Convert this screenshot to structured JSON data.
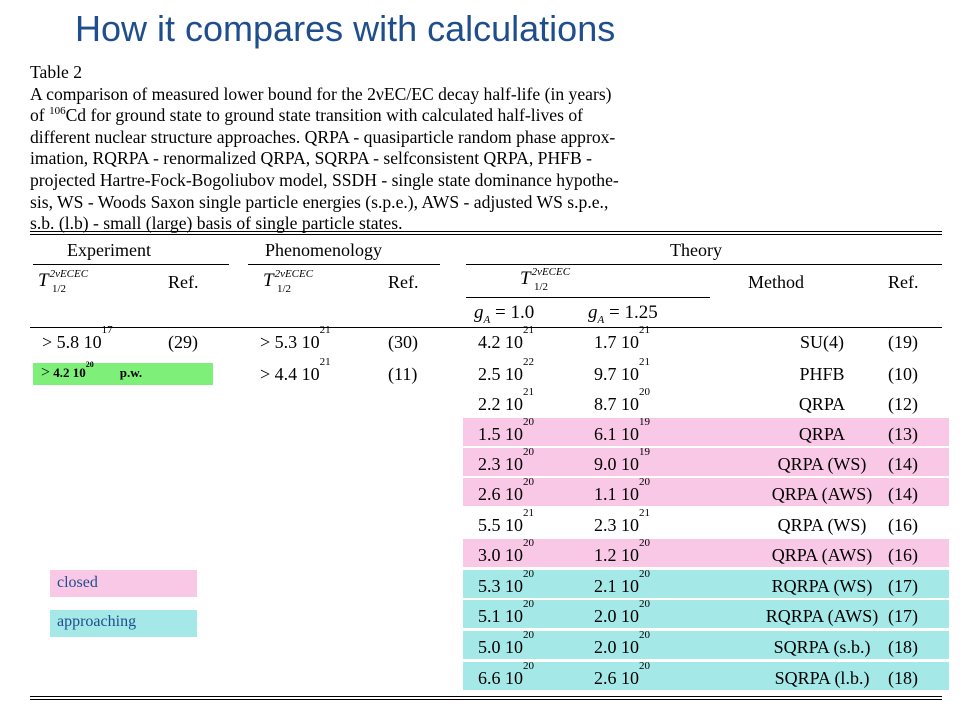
{
  "slide": {
    "title": "How it compares with calculations"
  },
  "caption": {
    "heading": "Table 2",
    "line1": "A comparison of measured lower bound for the 2νEC/EC decay half-life (in years)",
    "line2_pre": "of ",
    "line2_mass": "106",
    "line2_post": "Cd for ground state to ground state transition with calculated half-lives of",
    "line3": "different nuclear structure approaches. QRPA - quasiparticle random phase approx-",
    "line4": "imation, RQRPA - renormalized QRPA, SQRPA - selfconsistent QRPA, PHFB -",
    "line5": "projected Hartre-Fock-Bogoliubov model, SSDH - single state dominance hypothe-",
    "line6": "sis, WS - Woods Saxon single particle energies (s.p.e.), AWS - adjusted WS s.p.e.,",
    "line7": "s.b. (l.b) - small (large) basis of single particle states."
  },
  "table": {
    "groups": {
      "experiment": "Experiment",
      "phenomenology": "Phenomenology",
      "theory": "Theory"
    },
    "headers": {
      "t_main": "T",
      "t_sup": "2νECEC",
      "t_sub": "1/2",
      "ref": "Ref.",
      "method": "Method",
      "ga_label": "g",
      "ga_sub": "A",
      "ga1": " = 1.0",
      "ga2": " = 1.25"
    },
    "experiment_rows": [
      {
        "value": "> 5.8 10",
        "exp": "17",
        "ref": "(29)"
      }
    ],
    "phenomenology_rows": [
      {
        "value": "> 5.3 10",
        "exp": "21",
        "ref": "(30)"
      },
      {
        "value": "> 4.4 10",
        "exp": "21",
        "ref": "(11)"
      }
    ],
    "theory_rows": [
      {
        "v1": "4.2 10",
        "e1": "21",
        "v2": "1.7 10",
        "e2": "21",
        "method": "SU(4)",
        "ref": "(19)",
        "status": "none"
      },
      {
        "v1": "2.5 10",
        "e1": "22",
        "v2": "9.7 10",
        "e2": "21",
        "method": "PHFB",
        "ref": "(10)",
        "status": "none"
      },
      {
        "v1": "2.2 10",
        "e1": "21",
        "v2": "8.7 10",
        "e2": "20",
        "method": "QRPA",
        "ref": "(12)",
        "status": "none"
      },
      {
        "v1": "1.5 10",
        "e1": "20",
        "v2": "6.1 10",
        "e2": "19",
        "method": "QRPA",
        "ref": "(13)",
        "status": "closed"
      },
      {
        "v1": "2.3 10",
        "e1": "20",
        "v2": "9.0 10",
        "e2": "19",
        "method": "QRPA (WS)",
        "ref": "(14)",
        "status": "closed"
      },
      {
        "v1": "2.6 10",
        "e1": "20",
        "v2": "1.1 10",
        "e2": "20",
        "method": "QRPA (AWS)",
        "ref": "(14)",
        "status": "closed"
      },
      {
        "v1": "5.5 10",
        "e1": "21",
        "v2": "2.3 10",
        "e2": "21",
        "method": "QRPA (WS)",
        "ref": "(16)",
        "status": "none"
      },
      {
        "v1": "3.0 10",
        "e1": "20",
        "v2": "1.2 10",
        "e2": "20",
        "method": "QRPA (AWS)",
        "ref": "(16)",
        "status": "closed"
      },
      {
        "v1": "5.3 10",
        "e1": "20",
        "v2": "2.1 10",
        "e2": "20",
        "method": "RQRPA (WS)",
        "ref": "(17)",
        "status": "approaching"
      },
      {
        "v1": "5.1 10",
        "e1": "20",
        "v2": "2.0 10",
        "e2": "20",
        "method": "RQRPA (AWS)",
        "ref": "(17)",
        "status": "approaching"
      },
      {
        "v1": "5.0 10",
        "e1": "20",
        "v2": "2.0 10",
        "e2": "20",
        "method": "SQRPA (s.b.)",
        "ref": "(18)",
        "status": "approaching"
      },
      {
        "v1": "6.6 10",
        "e1": "20",
        "v2": "2.6 10",
        "e2": "20",
        "method": "SQRPA (l.b.)",
        "ref": "(18)",
        "status": "approaching"
      }
    ]
  },
  "present_work": {
    "gt": ">",
    "value": "4.2  10",
    "exp": "20",
    "label": "p.w."
  },
  "legend": [
    {
      "label": "closed",
      "color": "#f9c8e6"
    },
    {
      "label": "approaching",
      "color": "#a4e8e8"
    }
  ],
  "colors": {
    "title": "#1f4e8c",
    "closed": "#f9c8e6",
    "approaching": "#a4e8e8",
    "present_work": "#7ef07a"
  }
}
